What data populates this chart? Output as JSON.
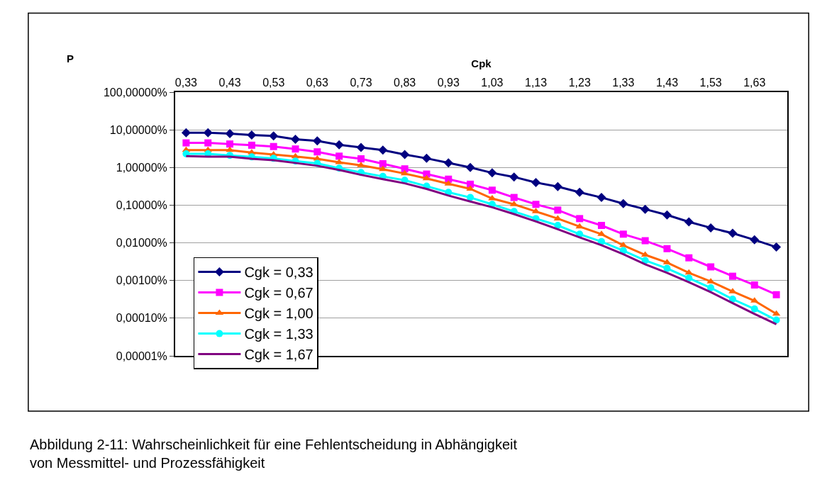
{
  "chart_data": {
    "type": "line",
    "xlabel": "Cpk",
    "ylabel": "P",
    "categories": [
      "0,33",
      null,
      "0,43",
      null,
      "0,53",
      null,
      "0,63",
      null,
      "0,73",
      null,
      "0,83",
      null,
      "0,93",
      null,
      "1,03",
      null,
      "1,13",
      null,
      "1,23",
      null,
      "1,33",
      null,
      "1,43",
      null,
      "1,53",
      null,
      "1,63",
      null
    ],
    "log": "y",
    "ylim": [
      1e-05,
      100
    ],
    "yticks": [
      {
        "value": 100,
        "label": "100,00000%"
      },
      {
        "value": 10,
        "label": "10,00000%"
      },
      {
        "value": 1,
        "label": "1,00000%"
      },
      {
        "value": 0.1,
        "label": "0,10000%"
      },
      {
        "value": 0.01,
        "label": "0,01000%"
      },
      {
        "value": 0.001,
        "label": "0,00100%"
      },
      {
        "value": 0.0001,
        "label": "0,00010%"
      },
      {
        "value": 1e-05,
        "label": "0,00001%"
      }
    ],
    "grid": "y",
    "legend": "bottom left",
    "series": [
      {
        "name": "Cgk = 0,33",
        "color": "#000080",
        "marker": "diamond",
        "values": [
          8.4,
          8.4,
          7.9,
          7.3,
          6.9,
          5.6,
          5.1,
          4.0,
          3.4,
          2.9,
          2.2,
          1.75,
          1.33,
          1.0,
          0.72,
          0.56,
          0.4,
          0.31,
          0.22,
          0.16,
          0.11,
          0.078,
          0.055,
          0.036,
          0.025,
          0.018,
          0.012,
          0.0077
        ]
      },
      {
        "name": "Cgk = 0,67",
        "color": "#ff00ff",
        "marker": "square",
        "values": [
          4.5,
          4.5,
          4.2,
          3.9,
          3.6,
          3.1,
          2.6,
          2.0,
          1.7,
          1.26,
          0.92,
          0.67,
          0.49,
          0.36,
          0.25,
          0.16,
          0.105,
          0.074,
          0.044,
          0.029,
          0.017,
          0.0114,
          0.007,
          0.004,
          0.0023,
          0.0013,
          0.00076,
          0.00042
        ]
      },
      {
        "name": "Cgk = 1,00",
        "color": "#ff6600",
        "marker": "triangle",
        "values": [
          2.9,
          2.9,
          2.9,
          2.5,
          2.2,
          1.96,
          1.7,
          1.37,
          1.14,
          0.9,
          0.69,
          0.51,
          0.37,
          0.27,
          0.15,
          0.105,
          0.068,
          0.044,
          0.027,
          0.017,
          0.0086,
          0.0048,
          0.003,
          0.0016,
          0.00094,
          0.00051,
          0.00029,
          0.00013
        ]
      },
      {
        "name": "Cgk = 1,33",
        "color": "#00ffff",
        "marker": "circle",
        "values": [
          2.3,
          2.3,
          2.1,
          1.91,
          1.75,
          1.48,
          1.28,
          0.96,
          0.74,
          0.58,
          0.46,
          0.32,
          0.22,
          0.16,
          0.105,
          0.068,
          0.044,
          0.029,
          0.017,
          0.0108,
          0.0062,
          0.0034,
          0.0021,
          0.00116,
          0.00064,
          0.00032,
          0.000176,
          8.9e-05
        ]
      },
      {
        "name": "Cgk = 1,67",
        "color": "#800080",
        "marker": "none",
        "values": [
          2.0,
          1.94,
          1.94,
          1.7,
          1.56,
          1.32,
          1.11,
          0.86,
          0.64,
          0.49,
          0.38,
          0.27,
          0.18,
          0.125,
          0.088,
          0.058,
          0.037,
          0.023,
          0.014,
          0.0087,
          0.005,
          0.0027,
          0.0016,
          0.0009,
          0.00049,
          0.00025,
          0.00013,
          6.9e-05
        ]
      }
    ],
    "annotations": [
      "Abbildung 2-11: Wahrscheinlichkeit für eine Fehlentscheidung in Abhängigkeit von Messmittel- und Prozessfähigkeit"
    ]
  }
}
